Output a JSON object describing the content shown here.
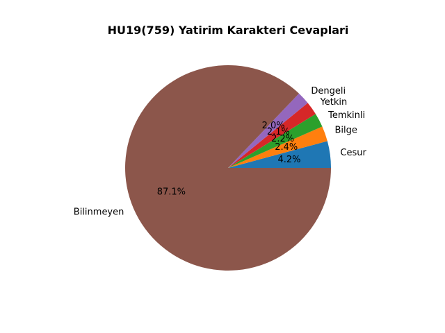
{
  "chart_data": {
    "type": "pie",
    "title": "HU19(759) Yatirim Karakteri Cevaplari",
    "start_angle_deg": 0,
    "direction": "counterclockwise",
    "slices": [
      {
        "label": "Cesur",
        "value": 4.2,
        "pct_label": "4.2%",
        "color": "#1f77b4"
      },
      {
        "label": "Bilge",
        "value": 2.4,
        "pct_label": "2.4%",
        "color": "#ff7f0e"
      },
      {
        "label": "Temkinli",
        "value": 2.2,
        "pct_label": "2.2%",
        "color": "#2ca02c"
      },
      {
        "label": "Yetkin",
        "value": 2.1,
        "pct_label": "2.1%",
        "color": "#d62728"
      },
      {
        "label": "Dengeli",
        "value": 2.0,
        "pct_label": "2.0%",
        "color": "#9467bd"
      },
      {
        "label": "Bilinmeyen",
        "value": 87.1,
        "pct_label": "87.1%",
        "color": "#8c564b"
      }
    ]
  }
}
